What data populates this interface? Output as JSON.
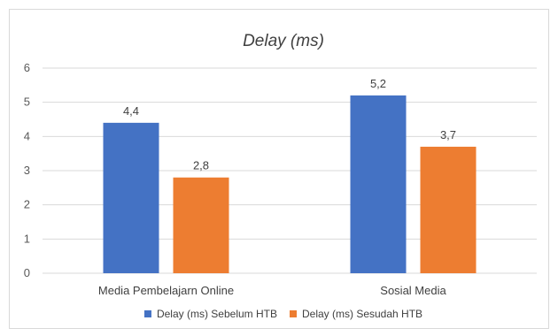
{
  "chart_data": {
    "type": "bar",
    "title": "Delay (ms)",
    "categories": [
      "Media Pembelajarn Online",
      "Sosial Media"
    ],
    "series": [
      {
        "name": "Delay (ms) Sebelum HTB",
        "color": "#4472c4",
        "values": [
          4.4,
          5.2
        ],
        "labels": [
          "4,4",
          "5,2"
        ]
      },
      {
        "name": "Delay (ms) Sesudah HTB",
        "color": "#ed7d31",
        "values": [
          2.8,
          3.7
        ],
        "labels": [
          "2,8",
          "3,7"
        ]
      }
    ],
    "yticks": [
      "0",
      "1",
      "2",
      "3",
      "4",
      "5",
      "6"
    ],
    "ylim": [
      0,
      6
    ],
    "grid": true,
    "legend": "bottom"
  }
}
